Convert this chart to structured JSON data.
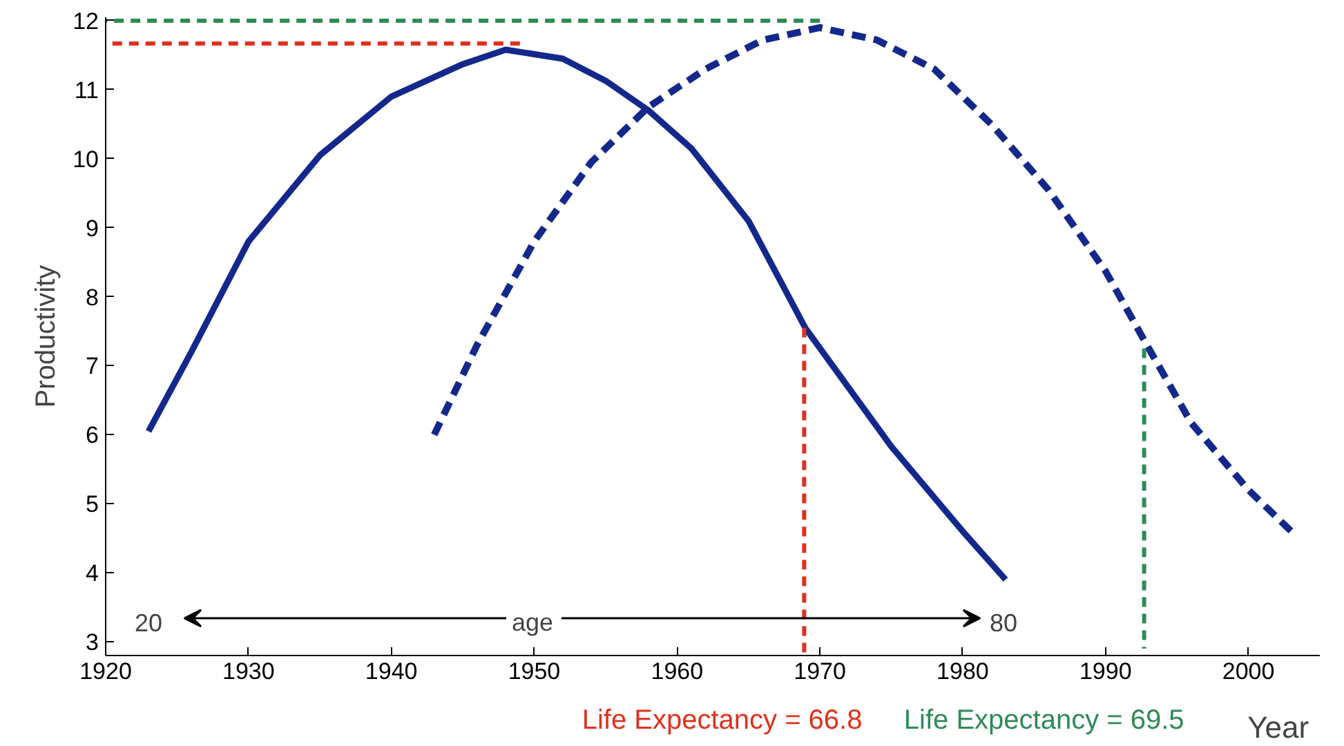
{
  "chart_data": {
    "type": "line",
    "xlabel": "Year",
    "ylabel": "Productivity",
    "xlim": [
      1920,
      2005
    ],
    "ylim": [
      2.8,
      12.05
    ],
    "xticks": [
      1920,
      1930,
      1940,
      1950,
      1960,
      1970,
      1980,
      1990,
      2000
    ],
    "yticks": [
      3,
      4,
      5,
      6,
      7,
      8,
      9,
      10,
      11,
      12
    ],
    "grid": false,
    "marker": "none",
    "series": [
      {
        "color": "#14288c",
        "line_style": "solid",
        "x": [
          1923,
          1926,
          1930,
          1935,
          1940,
          1945,
          1948,
          1952,
          1955,
          1958,
          1961,
          1965,
          1969,
          1975,
          1980,
          1983
        ],
        "values": [
          6.05,
          7.2,
          8.8,
          10.05,
          10.9,
          11.37,
          11.58,
          11.45,
          11.13,
          10.7,
          10.15,
          9.1,
          7.54,
          5.83,
          4.6,
          3.9
        ]
      },
      {
        "color": "#14288c",
        "line_style": "dashed",
        "x": [
          1943,
          1946,
          1950,
          1954,
          1958,
          1962,
          1966,
          1970,
          1974,
          1978,
          1982,
          1986,
          1990,
          1993,
          1996,
          2000,
          2003
        ],
        "values": [
          6.0,
          7.3,
          8.8,
          9.95,
          10.75,
          11.3,
          11.72,
          11.9,
          11.72,
          11.3,
          10.5,
          9.55,
          8.37,
          7.26,
          6.17,
          5.2,
          4.6
        ]
      },
      {
        "color": "#e0301e",
        "line_style": "dotted",
        "x": [
          1949,
          1920
        ],
        "values": [
          11.67,
          11.67
        ]
      },
      {
        "color": "#e0301e",
        "line_style": "dotted",
        "x": [
          1968.9,
          1968.9
        ],
        "values": [
          7.55,
          2.8
        ]
      },
      {
        "color": "#2e8b57",
        "line_style": "dotted",
        "x": [
          1970,
          1920
        ],
        "values": [
          12,
          12
        ]
      },
      {
        "color": "#2e8b57",
        "line_style": "dotted",
        "x": [
          1992.7,
          1992.7
        ],
        "values": [
          7.25,
          2.9
        ]
      }
    ],
    "annotations": [
      "Life Expectancy = 66.8",
      "Life Expectancy = 69.5",
      "20",
      "age",
      "80"
    ]
  }
}
